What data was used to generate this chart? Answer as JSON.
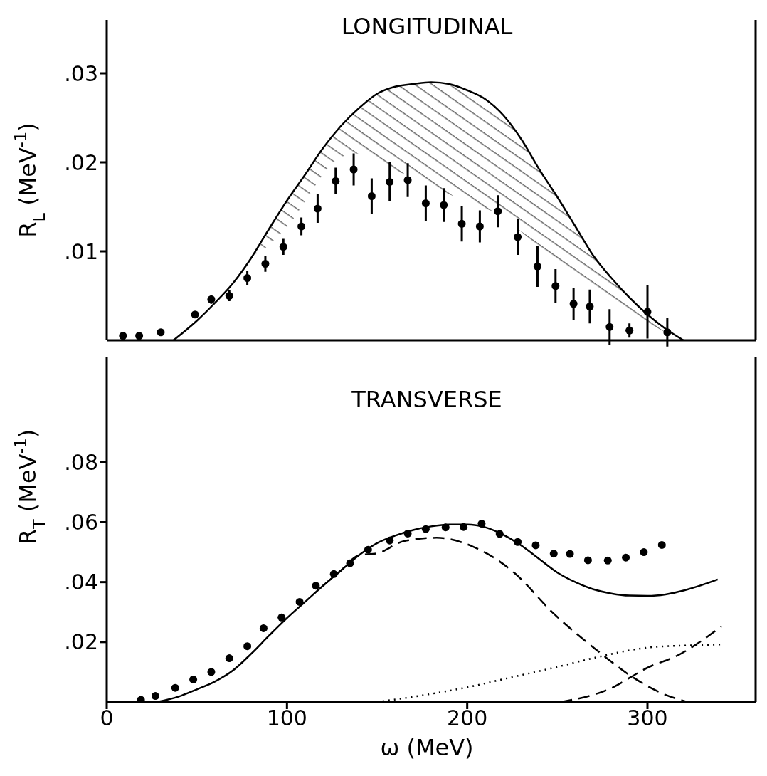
{
  "chart_data": [
    {
      "type": "scatter",
      "title": "LONGITUDINAL",
      "ylabel": "R$_{L}$ (MeV$^{-1}$)",
      "xlim": [
        0,
        360
      ],
      "xticks": [
        0,
        100,
        200,
        300
      ],
      "ylim": [
        0,
        0.036
      ],
      "yticks": [
        {
          "value": 0.01,
          "label": ".01"
        },
        {
          "value": 0.02,
          "label": ".02"
        },
        {
          "value": 0.03,
          "label": ".03"
        }
      ],
      "tick_labels": "y",
      "series": [
        {
          "type": "line",
          "color": "#000000",
          "line_style": "solid",
          "x": [
            37,
            50,
            60,
            70,
            80,
            90,
            100,
            110,
            120,
            130,
            140,
            150,
            160,
            170,
            180,
            190,
            200,
            210,
            220,
            230,
            240,
            250,
            260,
            270,
            280,
            290,
            300,
            310,
            320
          ],
          "values": [
            0,
            0.0022,
            0.0042,
            0.0064,
            0.0092,
            0.0125,
            0.0157,
            0.0186,
            0.0216,
            0.0241,
            0.0261,
            0.0277,
            0.0285,
            0.0288,
            0.029,
            0.0288,
            0.0281,
            0.0271,
            0.0253,
            0.0226,
            0.0192,
            0.0161,
            0.0128,
            0.0095,
            0.007,
            0.0048,
            0.0029,
            0.0013,
            0
          ],
          "lower": [
            0,
            0.0022,
            0.0042,
            0.0064,
            0.0092,
            0.0107,
            0.0127,
            0.0156,
            0.0186,
            0.0206,
            0.021,
            0.0198,
            0.019,
            0.0184,
            0.0172,
            0.0164,
            0.0156,
            0.0148,
            0.014,
            0.0122,
            0.0105,
            0.009,
            0.0074,
            0.0059,
            0.0046,
            0.0032,
            0.002,
            0.0009,
            0
          ],
          "upper": [
            0,
            0.0022,
            0.0042,
            0.0064,
            0.0092,
            0.0125,
            0.0157,
            0.0186,
            0.0216,
            0.0241,
            0.0261,
            0.0277,
            0.0285,
            0.0288,
            0.029,
            0.0288,
            0.0281,
            0.0271,
            0.0253,
            0.0226,
            0.0192,
            0.0161,
            0.0128,
            0.0095,
            0.007,
            0.0048,
            0.0029,
            0.0013,
            0
          ]
        },
        {
          "marker": "circle",
          "color": "#000000",
          "x": [
            9,
            18,
            30,
            49,
            58,
            68,
            78,
            88,
            98,
            108,
            117,
            127,
            137,
            147,
            157,
            167,
            177,
            187,
            197,
            207,
            217,
            228,
            239,
            249,
            259,
            268,
            279,
            290,
            300,
            311
          ],
          "values": [
            0.0005,
            0.0005,
            0.0009,
            0.0029,
            0.0046,
            0.005,
            0.007,
            0.0086,
            0.0105,
            0.0128,
            0.0148,
            0.0179,
            0.0192,
            0.0162,
            0.0178,
            0.018,
            0.0154,
            0.0152,
            0.0131,
            0.0128,
            0.0145,
            0.0116,
            0.0083,
            0.0061,
            0.0041,
            0.0038,
            0.0015,
            0.0011,
            0.0032,
            0.0009
          ],
          "errors": [
            null,
            null,
            null,
            null,
            0.0005,
            0.0006,
            0.0008,
            0.0009,
            0.0009,
            0.001,
            0.0016,
            0.0015,
            0.0018,
            0.002,
            0.0022,
            0.0019,
            0.002,
            0.0019,
            0.002,
            0.0018,
            0.0018,
            0.002,
            0.0023,
            0.0019,
            0.0018,
            0.0019,
            0.002,
            0.0008,
            0.003,
            0.0016
          ]
        }
      ]
    },
    {
      "type": "scatter",
      "title": "TRANSVERSE",
      "xlabel": "ω (MeV)",
      "ylabel": "R$_{T}$ (MeV$^{-1}$)",
      "xlim": [
        0,
        360
      ],
      "xticks": [
        0,
        100,
        200,
        300
      ],
      "ylim": [
        0,
        0.115
      ],
      "yticks": [
        {
          "value": 0.02,
          "label": ".02"
        },
        {
          "value": 0.04,
          "label": ".04"
        },
        {
          "value": 0.06,
          "label": ".06"
        },
        {
          "value": 0.08,
          "label": ".08"
        }
      ],
      "series": [
        {
          "marker": "circle",
          "color": "#000000",
          "x": [
            19,
            27,
            38,
            48,
            58,
            68,
            78,
            87,
            97,
            107,
            116,
            126,
            135,
            145,
            157,
            167,
            177,
            188,
            198,
            208,
            218,
            228,
            238,
            248,
            257,
            267,
            278,
            288,
            298,
            308
          ],
          "values": [
            0.0007,
            0.002,
            0.0047,
            0.0075,
            0.01,
            0.0146,
            0.0186,
            0.0246,
            0.0282,
            0.0334,
            0.0388,
            0.0427,
            0.0463,
            0.0508,
            0.0539,
            0.0562,
            0.0577,
            0.0583,
            0.0584,
            0.0595,
            0.0561,
            0.0534,
            0.0523,
            0.0495,
            0.0494,
            0.0473,
            0.0472,
            0.0482,
            0.05,
            0.0524
          ]
        },
        {
          "type": "line",
          "color": "#000000",
          "line_style": "solid",
          "x": [
            28,
            40,
            50,
            60,
            70,
            80,
            90,
            100,
            110,
            120,
            130,
            140,
            150,
            160,
            170,
            180,
            190,
            200,
            210,
            220,
            230,
            240,
            250,
            260,
            270,
            280,
            290,
            300,
            310,
            320,
            330,
            339
          ],
          "values": [
            0,
            0.0018,
            0.0042,
            0.0068,
            0.0105,
            0.016,
            0.0221,
            0.028,
            0.0334,
            0.0388,
            0.0439,
            0.049,
            0.053,
            0.0555,
            0.0574,
            0.0586,
            0.0592,
            0.0592,
            0.0583,
            0.0558,
            0.0522,
            0.0477,
            0.0432,
            0.04,
            0.0376,
            0.0362,
            0.0355,
            0.0354,
            0.0359,
            0.0372,
            0.039,
            0.0409
          ]
        },
        {
          "type": "line",
          "color": "#000000",
          "line_style": "dashed",
          "x": [
            120,
            130,
            140,
            150,
            165,
            183,
            203,
            225,
            248,
            271,
            293,
            308,
            322
          ],
          "values": [
            0.0388,
            0.0439,
            0.049,
            0.0496,
            0.0537,
            0.0548,
            0.0519,
            0.0437,
            0.0295,
            0.0177,
            0.0078,
            0.0029,
            0
          ]
        },
        {
          "type": "line",
          "color": "#000000",
          "line_style": "dotted",
          "x": [
            150,
            175,
            200,
            225,
            250,
            271,
            301,
            324,
            341
          ],
          "values": [
            0,
            0.0022,
            0.0049,
            0.0083,
            0.0117,
            0.0148,
            0.0182,
            0.0189,
            0.0192
          ]
        },
        {
          "type": "line",
          "color": "#000000",
          "line_style": "dashed",
          "x": [
            252,
            278,
            301,
            316,
            341
          ],
          "values": [
            0,
            0.0041,
            0.0117,
            0.0153,
            0.0252
          ]
        }
      ]
    }
  ]
}
